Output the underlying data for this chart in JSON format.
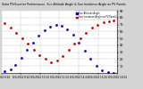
{
  "title": "Solar PV/Inverter Performance  Sun Altitude Angle & Sun Incidence Angle on PV Panels",
  "legend_blue": "Sun Altitude Angle",
  "legend_red": "Sun Incidence Angle on PV Panels",
  "bg_color": "#d4d4d4",
  "plot_bg": "#ffffff",
  "grid_color": "#b0b0b0",
  "blue_color": "#0000cc",
  "red_color": "#cc0000",
  "ylim": [
    0,
    90
  ],
  "yticks": [
    10,
    20,
    30,
    40,
    50,
    60,
    70,
    80,
    90
  ],
  "blue_x": [
    0.03,
    0.08,
    0.12,
    0.17,
    0.22,
    0.27,
    0.32,
    0.37,
    0.42,
    0.47,
    0.52,
    0.57,
    0.62,
    0.67,
    0.72,
    0.77,
    0.82,
    0.87,
    0.92,
    0.97
  ],
  "blue_y": [
    2,
    5,
    12,
    22,
    33,
    44,
    54,
    62,
    67,
    69,
    68,
    63,
    55,
    44,
    32,
    20,
    10,
    4,
    1,
    0
  ],
  "red_x": [
    0.03,
    0.08,
    0.13,
    0.18,
    0.23,
    0.28,
    0.33,
    0.38,
    0.43,
    0.48,
    0.53,
    0.58,
    0.63,
    0.68,
    0.73,
    0.78,
    0.83,
    0.88,
    0.93,
    0.97
  ],
  "red_y": [
    72,
    65,
    58,
    50,
    42,
    33,
    26,
    20,
    16,
    18,
    25,
    33,
    42,
    50,
    58,
    65,
    69,
    73,
    75,
    76
  ],
  "xtick_labels": [
    "8/1/2014 6:24",
    "8/1/2014 8:24",
    "8/1/2014 10:24",
    "8/1/2014 12:24",
    "8/1/2014 14:24",
    "8/1/2014 16:24",
    "8/1/2014 18:24"
  ],
  "xtick_positions": [
    0.0,
    0.167,
    0.333,
    0.5,
    0.667,
    0.833,
    1.0
  ]
}
